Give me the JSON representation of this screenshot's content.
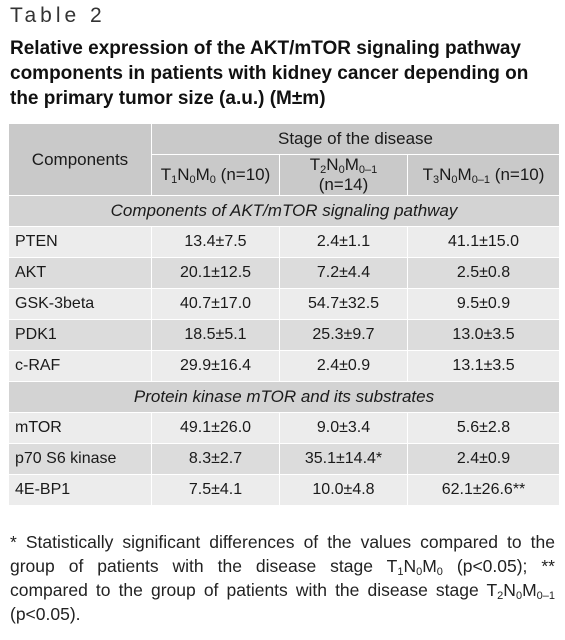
{
  "table_label": "Table 2",
  "caption": "Relative expression of the AKT/mTOR signaling pathway components in patients with kidney cancer depending on the primary tumor size (a.u.) (M±m)",
  "header": {
    "components": "Components",
    "stage": "Stage of the disease",
    "columns": [
      {
        "t": "T",
        "t_sub": "1",
        "n": "N",
        "n_sub": "0",
        "m": "M",
        "m_sub": "0",
        "count": "(n=10)"
      },
      {
        "t": "T",
        "t_sub": "2",
        "n": "N",
        "n_sub": "0",
        "m": "M",
        "m_sub": "0–1",
        "count": "(n=14)"
      },
      {
        "t": "T",
        "t_sub": "3",
        "n": "N",
        "n_sub": "0",
        "m": "M",
        "m_sub": "0–1",
        "count": "(n=10)"
      }
    ]
  },
  "section1": {
    "title": "Components of AKT/mTOR signaling pathway",
    "rows": [
      {
        "name": "PTEN",
        "v1": "13.4±7.5",
        "v2": "2.4±1.1",
        "v3": "41.1±15.0"
      },
      {
        "name": "AKT",
        "v1": "20.1±12.5",
        "v2": "7.2±4.4",
        "v3": "2.5±0.8"
      },
      {
        "name": "GSK-3beta",
        "v1": "40.7±17.0",
        "v2": "54.7±32.5",
        "v3": "9.5±0.9"
      },
      {
        "name": "PDK1",
        "v1": "18.5±5.1",
        "v2": "25.3±9.7",
        "v3": "13.0±3.5"
      },
      {
        "name": "c-RAF",
        "v1": "29.9±16.4",
        "v2": "2.4±0.9",
        "v3": "13.1±3.5"
      }
    ]
  },
  "section2": {
    "title": "Protein kinase mTOR and its substrates",
    "rows": [
      {
        "name": "mTOR",
        "v1": "49.1±26.0",
        "v2": "9.0±3.4",
        "v3": "5.6±2.8"
      },
      {
        "name": "p70 S6 kinase",
        "v1": "8.3±2.7",
        "v2": "35.1±14.4*",
        "v3": "2.4±0.9"
      },
      {
        "name": "4E-BP1",
        "v1": "7.5±4.1",
        "v2": "10.0±4.8",
        "v3": "62.1±26.6**"
      }
    ]
  },
  "footnote": {
    "part1": "* Statistically significant differences of the values compared to the group of patients with the disease stage ",
    "stage1": {
      "t": "T",
      "t_sub": "1",
      "n": "N",
      "n_sub": "0",
      "m": "M",
      "m_sub": "0"
    },
    "part2": " (p<0.05); ** compared to the group of patients with the disease stage ",
    "stage2": {
      "t": "T",
      "t_sub": "2",
      "n": "N",
      "n_sub": "0",
      "m": "M",
      "m_sub": "0–1"
    },
    "part3": " (p<0.05)."
  }
}
